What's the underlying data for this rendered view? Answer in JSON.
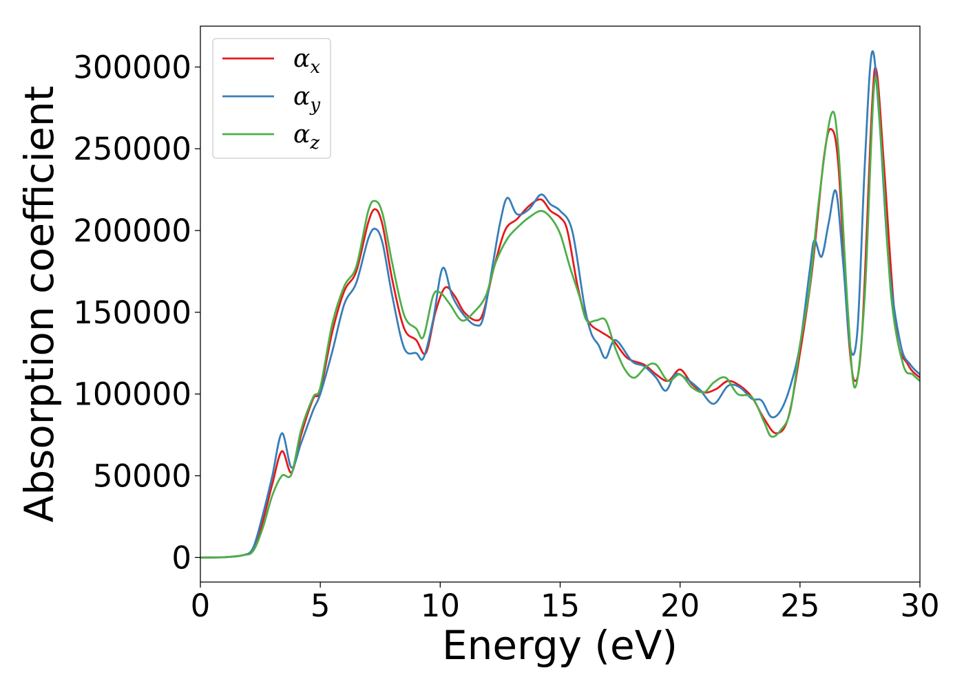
{
  "chart_data": {
    "type": "line",
    "xlabel": "Energy (eV)",
    "ylabel": "Absorption coefficient",
    "xlim": [
      0,
      30
    ],
    "ylim": [
      -15000,
      325000
    ],
    "xticks": [
      0,
      5,
      10,
      15,
      20,
      25,
      30
    ],
    "yticks": [
      0,
      50000,
      100000,
      150000,
      200000,
      250000,
      300000
    ],
    "grid": false,
    "legend_position": "top-left",
    "series": [
      {
        "name": "αx",
        "symbol": "α",
        "subscript": "x",
        "color": "#e41a1c",
        "points": [
          [
            0,
            0
          ],
          [
            1,
            200
          ],
          [
            1.8,
            1500
          ],
          [
            2.2,
            5000
          ],
          [
            2.6,
            22000
          ],
          [
            3.0,
            45000
          ],
          [
            3.4,
            65000
          ],
          [
            3.8,
            52000
          ],
          [
            4.2,
            75000
          ],
          [
            4.7,
            97000
          ],
          [
            5.0,
            102000
          ],
          [
            5.5,
            138000
          ],
          [
            6.0,
            163000
          ],
          [
            6.5,
            175000
          ],
          [
            7.0,
            205000
          ],
          [
            7.3,
            213000
          ],
          [
            7.6,
            203000
          ],
          [
            8.0,
            170000
          ],
          [
            8.5,
            140000
          ],
          [
            9.0,
            133000
          ],
          [
            9.4,
            125000
          ],
          [
            9.8,
            150000
          ],
          [
            10.2,
            165000
          ],
          [
            10.6,
            160000
          ],
          [
            11.0,
            150000
          ],
          [
            11.5,
            145000
          ],
          [
            11.8,
            150000
          ],
          [
            12.2,
            175000
          ],
          [
            12.7,
            200000
          ],
          [
            13.2,
            207000
          ],
          [
            13.7,
            215000
          ],
          [
            14.2,
            219000
          ],
          [
            14.6,
            212000
          ],
          [
            15.0,
            208000
          ],
          [
            15.3,
            200000
          ],
          [
            15.7,
            168000
          ],
          [
            16.0,
            150000
          ],
          [
            16.3,
            142000
          ],
          [
            16.7,
            138000
          ],
          [
            17.2,
            133000
          ],
          [
            17.8,
            122000
          ],
          [
            18.5,
            118000
          ],
          [
            19.0,
            112000
          ],
          [
            19.5,
            108000
          ],
          [
            20.0,
            115000
          ],
          [
            20.5,
            106000
          ],
          [
            21.0,
            101000
          ],
          [
            21.5,
            103000
          ],
          [
            22.0,
            108000
          ],
          [
            22.5,
            105000
          ],
          [
            23.0,
            98000
          ],
          [
            23.5,
            85000
          ],
          [
            24.0,
            76000
          ],
          [
            24.5,
            85000
          ],
          [
            25.0,
            125000
          ],
          [
            25.5,
            175000
          ],
          [
            26.0,
            245000
          ],
          [
            26.3,
            262000
          ],
          [
            26.6,
            240000
          ],
          [
            27.0,
            140000
          ],
          [
            27.3,
            108000
          ],
          [
            27.6,
            140000
          ],
          [
            28.0,
            275000
          ],
          [
            28.2,
            297000
          ],
          [
            28.5,
            240000
          ],
          [
            29.0,
            140000
          ],
          [
            29.5,
            118000
          ],
          [
            30.0,
            110000
          ]
        ]
      },
      {
        "name": "αy",
        "symbol": "α",
        "subscript": "y",
        "color": "#377eb8",
        "points": [
          [
            0,
            0
          ],
          [
            1,
            200
          ],
          [
            1.8,
            1500
          ],
          [
            2.2,
            6000
          ],
          [
            2.6,
            26000
          ],
          [
            3.0,
            50000
          ],
          [
            3.4,
            76000
          ],
          [
            3.8,
            55000
          ],
          [
            4.2,
            70000
          ],
          [
            4.7,
            90000
          ],
          [
            5.0,
            100000
          ],
          [
            5.5,
            126000
          ],
          [
            6.0,
            155000
          ],
          [
            6.5,
            168000
          ],
          [
            7.0,
            195000
          ],
          [
            7.3,
            201000
          ],
          [
            7.6,
            192000
          ],
          [
            8.0,
            160000
          ],
          [
            8.5,
            128000
          ],
          [
            9.0,
            125000
          ],
          [
            9.3,
            122000
          ],
          [
            9.7,
            145000
          ],
          [
            10.1,
            177000
          ],
          [
            10.5,
            160000
          ],
          [
            11.0,
            148000
          ],
          [
            11.5,
            142000
          ],
          [
            11.8,
            147000
          ],
          [
            12.2,
            180000
          ],
          [
            12.5,
            205000
          ],
          [
            12.8,
            220000
          ],
          [
            13.2,
            210000
          ],
          [
            13.7,
            213000
          ],
          [
            14.2,
            222000
          ],
          [
            14.6,
            216000
          ],
          [
            15.0,
            212000
          ],
          [
            15.5,
            200000
          ],
          [
            16.0,
            155000
          ],
          [
            16.3,
            137000
          ],
          [
            16.6,
            130000
          ],
          [
            16.9,
            122000
          ],
          [
            17.3,
            133000
          ],
          [
            18.0,
            120000
          ],
          [
            18.5,
            117000
          ],
          [
            19.0,
            110000
          ],
          [
            19.4,
            102000
          ],
          [
            19.8,
            112000
          ],
          [
            20.2,
            110000
          ],
          [
            20.8,
            103000
          ],
          [
            21.4,
            94000
          ],
          [
            22.0,
            105000
          ],
          [
            22.5,
            104000
          ],
          [
            23.0,
            97000
          ],
          [
            23.4,
            96000
          ],
          [
            23.8,
            86000
          ],
          [
            24.2,
            90000
          ],
          [
            24.6,
            105000
          ],
          [
            25.0,
            130000
          ],
          [
            25.4,
            175000
          ],
          [
            25.6,
            194000
          ],
          [
            25.9,
            184000
          ],
          [
            26.2,
            205000
          ],
          [
            26.5,
            224000
          ],
          [
            26.8,
            180000
          ],
          [
            27.1,
            128000
          ],
          [
            27.4,
            140000
          ],
          [
            27.7,
            240000
          ],
          [
            28.0,
            309000
          ],
          [
            28.3,
            270000
          ],
          [
            28.7,
            180000
          ],
          [
            29.2,
            130000
          ],
          [
            29.6,
            118000
          ],
          [
            30.0,
            112000
          ]
        ]
      },
      {
        "name": "αz",
        "symbol": "α",
        "subscript": "z",
        "color": "#4daf4a",
        "points": [
          [
            0,
            0
          ],
          [
            1,
            200
          ],
          [
            1.8,
            1500
          ],
          [
            2.2,
            4000
          ],
          [
            2.6,
            18000
          ],
          [
            3.0,
            38000
          ],
          [
            3.4,
            50000
          ],
          [
            3.8,
            51000
          ],
          [
            4.2,
            78000
          ],
          [
            4.7,
            98000
          ],
          [
            5.0,
            104000
          ],
          [
            5.5,
            143000
          ],
          [
            6.0,
            166000
          ],
          [
            6.5,
            178000
          ],
          [
            7.0,
            212000
          ],
          [
            7.3,
            218000
          ],
          [
            7.6,
            210000
          ],
          [
            8.0,
            180000
          ],
          [
            8.5,
            148000
          ],
          [
            9.0,
            140000
          ],
          [
            9.3,
            135000
          ],
          [
            9.7,
            160000
          ],
          [
            10.0,
            162000
          ],
          [
            10.4,
            155000
          ],
          [
            10.9,
            145000
          ],
          [
            11.4,
            150000
          ],
          [
            11.9,
            160000
          ],
          [
            12.3,
            180000
          ],
          [
            12.8,
            195000
          ],
          [
            13.3,
            203000
          ],
          [
            13.7,
            208000
          ],
          [
            14.2,
            212000
          ],
          [
            14.6,
            208000
          ],
          [
            15.0,
            198000
          ],
          [
            15.4,
            178000
          ],
          [
            15.8,
            160000
          ],
          [
            16.1,
            145000
          ],
          [
            16.5,
            145000
          ],
          [
            16.9,
            145000
          ],
          [
            17.3,
            128000
          ],
          [
            17.7,
            115000
          ],
          [
            18.1,
            110000
          ],
          [
            18.6,
            117000
          ],
          [
            19.0,
            118000
          ],
          [
            19.5,
            108000
          ],
          [
            20.0,
            112000
          ],
          [
            20.5,
            104000
          ],
          [
            21.0,
            101000
          ],
          [
            21.4,
            107000
          ],
          [
            21.9,
            110000
          ],
          [
            22.4,
            100000
          ],
          [
            23.0,
            98000
          ],
          [
            23.5,
            83000
          ],
          [
            23.8,
            74000
          ],
          [
            24.2,
            78000
          ],
          [
            24.6,
            90000
          ],
          [
            25.0,
            130000
          ],
          [
            25.4,
            165000
          ],
          [
            25.8,
            220000
          ],
          [
            26.3,
            271000
          ],
          [
            26.6,
            250000
          ],
          [
            27.0,
            150000
          ],
          [
            27.3,
            104000
          ],
          [
            27.7,
            160000
          ],
          [
            28.1,
            290000
          ],
          [
            28.4,
            250000
          ],
          [
            28.8,
            160000
          ],
          [
            29.3,
            118000
          ],
          [
            29.7,
            112000
          ],
          [
            30.0,
            108000
          ]
        ]
      }
    ]
  }
}
